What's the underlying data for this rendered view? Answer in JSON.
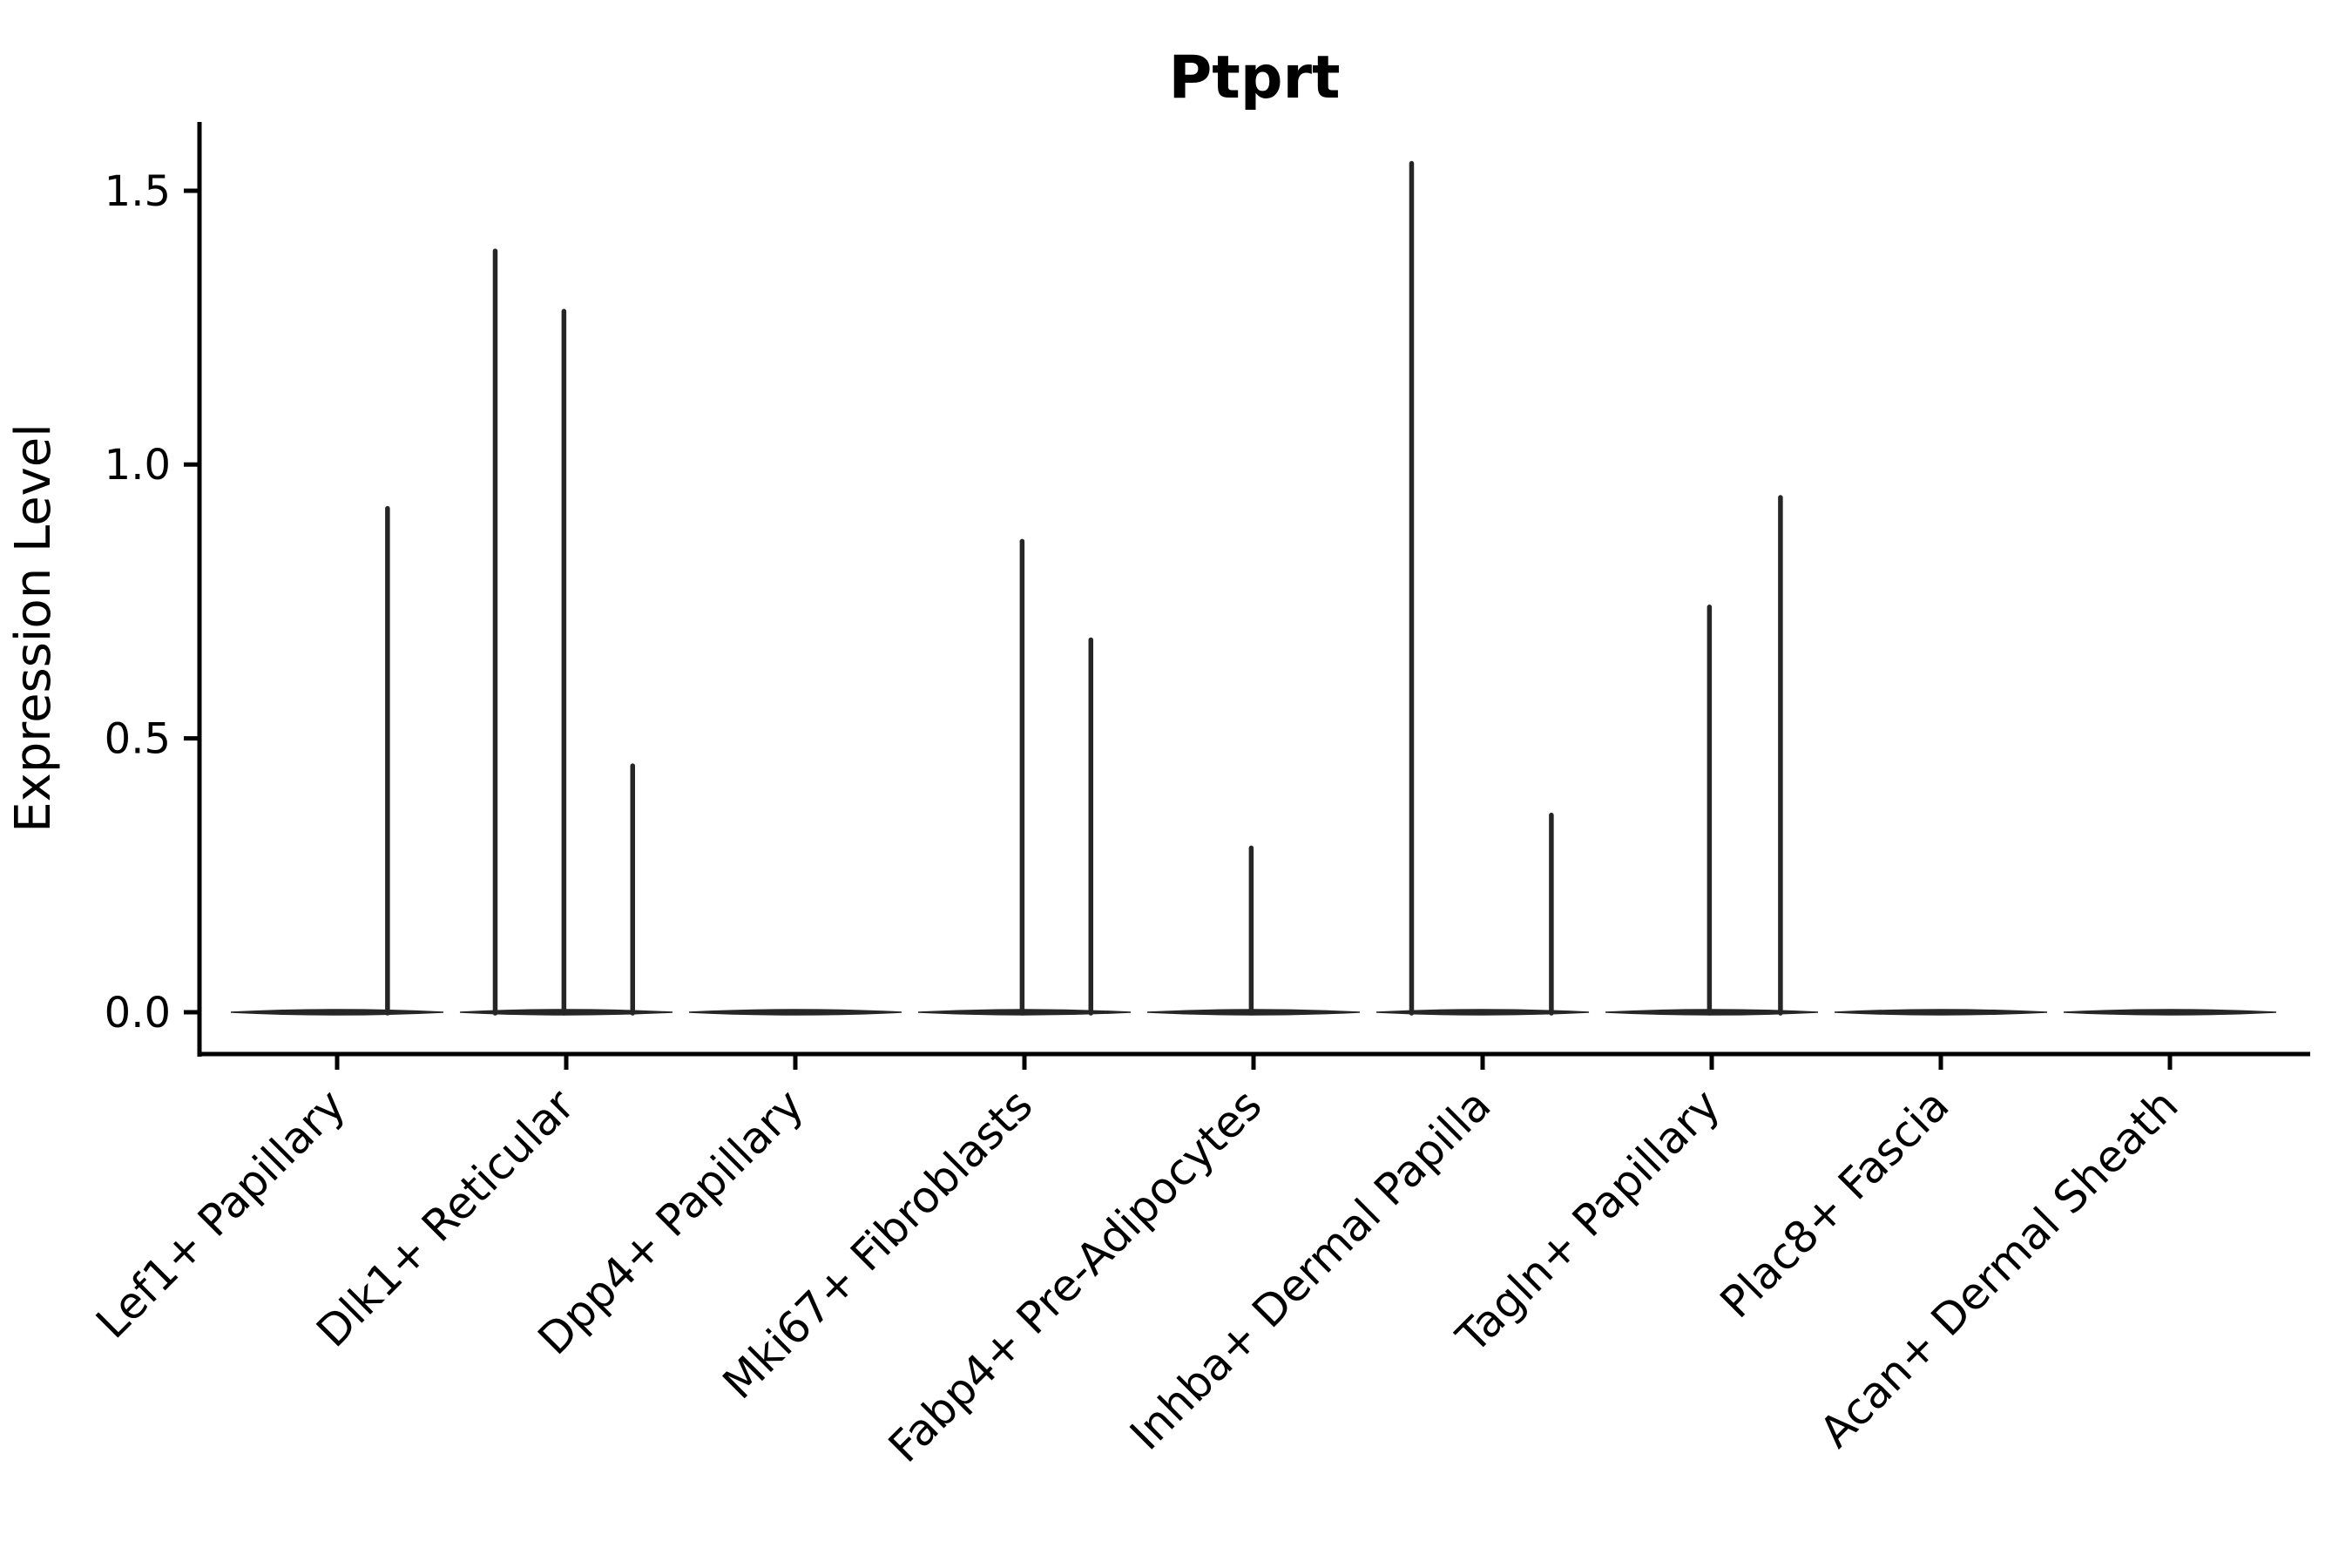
{
  "title": "Ptprt",
  "colors": {
    "text": "#000000",
    "axis": "#000000",
    "violin": "#262626",
    "background": "#ffffff"
  },
  "chart_data": {
    "type": "violin",
    "title": "Ptprt",
    "xlabel": "",
    "ylabel": "Expression Level",
    "grid": false,
    "legend": null,
    "ylim": [
      -0.08,
      1.63
    ],
    "yticks": [
      {
        "label": "0.0",
        "value": 0.0
      },
      {
        "label": "0.5",
        "value": 0.5
      },
      {
        "label": "1.0",
        "value": 1.0
      },
      {
        "label": "1.5",
        "value": 1.5
      }
    ],
    "categories": [
      "Lef1+ Papillary",
      "Dlk1+ Reticular",
      "Dpp4+ Papillary",
      "Mki67+ Fibroblasts",
      "Fabp4+ Pre-Adipocytes",
      "Inhba+ Dermal Papilla",
      "Tagln+ Papillary",
      "Plac8+ Fascia",
      "Acan+ Dermal Sheath"
    ],
    "series": [
      {
        "category": "Lef1+ Papillary",
        "baseline_value": 0.0,
        "spikes": [
          {
            "offset": 0.22,
            "value": 0.92
          }
        ]
      },
      {
        "category": "Dlk1+ Reticular",
        "baseline_value": 0.0,
        "spikes": [
          {
            "offset": -0.31,
            "value": 1.39
          },
          {
            "offset": -0.01,
            "value": 1.28
          },
          {
            "offset": 0.29,
            "value": 0.45
          }
        ]
      },
      {
        "category": "Dpp4+ Papillary",
        "baseline_value": 0.0,
        "spikes": []
      },
      {
        "category": "Mki67+ Fibroblasts",
        "baseline_value": 0.0,
        "spikes": [
          {
            "offset": -0.01,
            "value": 0.86
          },
          {
            "offset": 0.29,
            "value": 0.68
          }
        ]
      },
      {
        "category": "Fabp4+ Pre-Adipocytes",
        "baseline_value": 0.0,
        "spikes": [
          {
            "offset": -0.01,
            "value": 0.3
          }
        ]
      },
      {
        "category": "Inhba+ Dermal Papilla",
        "baseline_value": 0.0,
        "spikes": [
          {
            "offset": -0.31,
            "value": 1.55
          },
          {
            "offset": 0.3,
            "value": 0.36
          }
        ]
      },
      {
        "category": "Tagln+ Papillary",
        "baseline_value": 0.0,
        "spikes": [
          {
            "offset": -0.01,
            "value": 0.74
          },
          {
            "offset": 0.3,
            "value": 0.94
          }
        ]
      },
      {
        "category": "Plac8+ Fascia",
        "baseline_value": 0.0,
        "spikes": []
      },
      {
        "category": "Acan+ Dermal Sheath",
        "baseline_value": 0.0,
        "spikes": []
      }
    ]
  }
}
